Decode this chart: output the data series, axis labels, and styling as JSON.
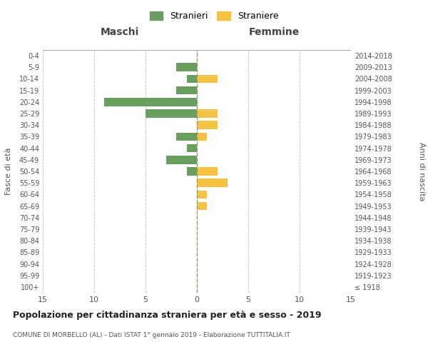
{
  "age_groups": [
    "100+",
    "95-99",
    "90-94",
    "85-89",
    "80-84",
    "75-79",
    "70-74",
    "65-69",
    "60-64",
    "55-59",
    "50-54",
    "45-49",
    "40-44",
    "35-39",
    "30-34",
    "25-29",
    "20-24",
    "15-19",
    "10-14",
    "5-9",
    "0-4"
  ],
  "birth_years": [
    "≤ 1918",
    "1919-1923",
    "1924-1928",
    "1929-1933",
    "1934-1938",
    "1939-1943",
    "1944-1948",
    "1949-1953",
    "1954-1958",
    "1959-1963",
    "1964-1968",
    "1969-1973",
    "1974-1978",
    "1979-1983",
    "1984-1988",
    "1989-1993",
    "1994-1998",
    "1999-2003",
    "2004-2008",
    "2009-2013",
    "2014-2018"
  ],
  "males": [
    0,
    0,
    0,
    0,
    0,
    0,
    0,
    0,
    0,
    0,
    1,
    3,
    1,
    2,
    0,
    5,
    9,
    2,
    1,
    2,
    0
  ],
  "females": [
    0,
    0,
    0,
    0,
    0,
    0,
    0,
    1,
    1,
    3,
    2,
    0,
    0,
    1,
    2,
    2,
    0,
    0,
    2,
    0,
    0
  ],
  "male_color": "#6a9e5e",
  "female_color": "#f5c242",
  "male_label": "Stranieri",
  "female_label": "Straniere",
  "title": "Popolazione per cittadinanza straniera per età e sesso - 2019",
  "subtitle": "COMUNE DI MORBELLO (AL) - Dati ISTAT 1° gennaio 2019 - Elaborazione TUTTITALIA.IT",
  "xlabel_left": "Maschi",
  "xlabel_right": "Femmine",
  "ylabel_left": "Fasce di età",
  "ylabel_right": "Anni di nascita",
  "xlim": 15,
  "background_color": "#ffffff",
  "grid_color": "#cccccc"
}
